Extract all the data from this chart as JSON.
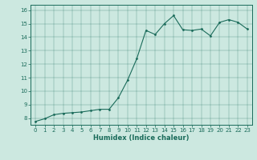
{
  "xlabel": "Humidex (Indice chaleur)",
  "bg_color": "#cce8e0",
  "line_color": "#1a6b5a",
  "marker_color": "#1a6b5a",
  "xlim": [
    -0.5,
    23.5
  ],
  "ylim": [
    7.5,
    16.4
  ],
  "yticks": [
    8,
    9,
    10,
    11,
    12,
    13,
    14,
    15,
    16
  ],
  "xticks": [
    0,
    1,
    2,
    3,
    4,
    5,
    6,
    7,
    8,
    9,
    10,
    11,
    12,
    13,
    14,
    15,
    16,
    17,
    18,
    19,
    20,
    21,
    22,
    23
  ],
  "x": [
    0,
    1,
    2,
    3,
    4,
    5,
    6,
    7,
    8,
    9,
    10,
    11,
    12,
    13,
    14,
    15,
    16,
    17,
    18,
    19,
    20,
    21,
    22,
    23
  ],
  "y": [
    7.75,
    7.95,
    8.25,
    8.35,
    8.4,
    8.45,
    8.55,
    8.65,
    8.65,
    9.5,
    10.8,
    12.4,
    14.5,
    14.2,
    15.0,
    15.6,
    14.55,
    14.5,
    14.6,
    14.1,
    15.1,
    15.3,
    15.1,
    14.6
  ]
}
